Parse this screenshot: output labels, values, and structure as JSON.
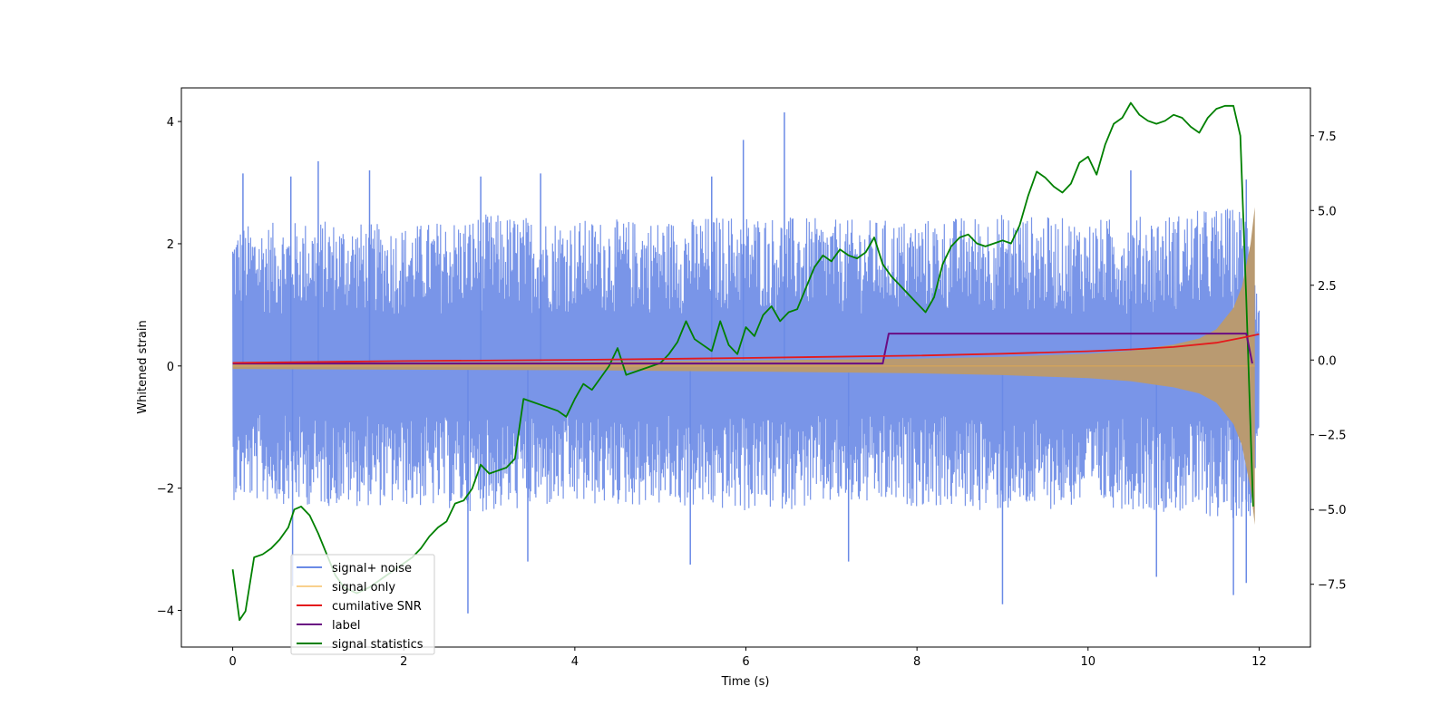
{
  "chart_data": {
    "type": "line",
    "xlabel": "Time (s)",
    "ylabel": "Whitened strain",
    "ylabel_right": "",
    "xlim": [
      -0.6,
      12.6
    ],
    "ylim": [
      -4.6,
      4.55
    ],
    "ylim_right": [
      -9.6,
      9.1
    ],
    "x_ticks": [
      0,
      2,
      4,
      6,
      8,
      10,
      12
    ],
    "x_tick_labels": [
      "0",
      "2",
      "4",
      "6",
      "8",
      "10",
      "12"
    ],
    "y_ticks": [
      -4,
      -2,
      0,
      2,
      4
    ],
    "y_tick_labels": [
      "−4",
      "−2",
      "0",
      "2",
      "4"
    ],
    "y_right_ticks": [
      -7.5,
      -5.0,
      -2.5,
      0.0,
      2.5,
      5.0,
      7.5
    ],
    "y_right_tick_labels": [
      "−7.5",
      "−5.0",
      "−2.5",
      "0.0",
      "2.5",
      "5.0",
      "7.5"
    ],
    "grid": false,
    "legend_position": "lower-left",
    "colors": {
      "signal_noise": "#6a8ae6",
      "signal_only": "#f5b041",
      "snr": "#e41a1c",
      "label": "#6a0d83",
      "stats": "#008000"
    },
    "series": [
      {
        "name": "signal+ noise",
        "axis": "left",
        "style": "dense noise band",
        "envelope_x": [
          0,
          1,
          2,
          3,
          4,
          5,
          6,
          7,
          8,
          9,
          10,
          11,
          11.5,
          11.9,
          12
        ],
        "envelope_upper": [
          2.3,
          2.4,
          2.3,
          2.5,
          2.4,
          2.4,
          2.5,
          2.4,
          2.4,
          2.5,
          2.4,
          2.5,
          2.6,
          2.6,
          1.0
        ],
        "envelope_lower": [
          -2.2,
          -2.3,
          -2.3,
          -2.4,
          -2.3,
          -2.3,
          -2.4,
          -2.3,
          -2.3,
          -2.4,
          -2.3,
          -2.4,
          -2.5,
          -2.5,
          -1.0
        ],
        "spikes": [
          {
            "x": 0.12,
            "y": 3.15
          },
          {
            "x": 0.68,
            "y": 3.1
          },
          {
            "x": 1.0,
            "y": 3.35
          },
          {
            "x": 1.6,
            "y": 3.2
          },
          {
            "x": 2.9,
            "y": 3.1
          },
          {
            "x": 3.6,
            "y": 3.15
          },
          {
            "x": 5.6,
            "y": 3.1
          },
          {
            "x": 5.97,
            "y": 3.7
          },
          {
            "x": 6.45,
            "y": 4.15
          },
          {
            "x": 10.5,
            "y": 3.2
          },
          {
            "x": 11.85,
            "y": 3.05
          },
          {
            "x": 2.75,
            "y": -4.05
          },
          {
            "x": 3.45,
            "y": -3.2
          },
          {
            "x": 5.35,
            "y": -3.25
          },
          {
            "x": 7.2,
            "y": -3.2
          },
          {
            "x": 9.0,
            "y": -3.9
          },
          {
            "x": 10.8,
            "y": -3.45
          },
          {
            "x": 11.7,
            "y": -3.75
          },
          {
            "x": 11.85,
            "y": -3.55
          },
          {
            "x": 0.7,
            "y": -3.6
          }
        ]
      },
      {
        "name": "signal only",
        "axis": "left",
        "style": "chirp envelope",
        "x": [
          0,
          2,
          4,
          6,
          8,
          9,
          10,
          10.5,
          11,
          11.3,
          11.5,
          11.7,
          11.8,
          11.9,
          11.95
        ],
        "amplitude": [
          0.05,
          0.06,
          0.07,
          0.09,
          0.12,
          0.15,
          0.2,
          0.25,
          0.35,
          0.45,
          0.6,
          0.95,
          1.3,
          2.0,
          2.6
        ]
      },
      {
        "name": "cumilative SNR",
        "axis": "left",
        "x": [
          0,
          2,
          4,
          6,
          8,
          9,
          10,
          10.5,
          11,
          11.5,
          11.8,
          12
        ],
        "values": [
          0.05,
          0.08,
          0.1,
          0.13,
          0.17,
          0.2,
          0.24,
          0.27,
          0.31,
          0.38,
          0.46,
          0.52
        ]
      },
      {
        "name": "label",
        "axis": "left",
        "x": [
          0,
          7.6,
          7.67,
          11.85,
          11.92
        ],
        "values": [
          0.04,
          0.04,
          0.53,
          0.53,
          0.04
        ]
      },
      {
        "name": "signal statistics",
        "axis": "right",
        "x": [
          0,
          0.08,
          0.15,
          0.25,
          0.35,
          0.45,
          0.55,
          0.65,
          0.72,
          0.8,
          0.9,
          1.0,
          1.1,
          1.2,
          1.3,
          1.45,
          1.6,
          1.75,
          1.9,
          2.0,
          2.1,
          2.2,
          2.3,
          2.4,
          2.5,
          2.6,
          2.7,
          2.8,
          2.9,
          3.0,
          3.1,
          3.2,
          3.3,
          3.4,
          3.5,
          3.6,
          3.7,
          3.8,
          3.9,
          4.0,
          4.1,
          4.2,
          4.3,
          4.4,
          4.5,
          4.6,
          4.7,
          4.8,
          4.9,
          5.0,
          5.1,
          5.2,
          5.3,
          5.4,
          5.5,
          5.6,
          5.7,
          5.8,
          5.9,
          6.0,
          6.1,
          6.2,
          6.3,
          6.4,
          6.5,
          6.6,
          6.7,
          6.8,
          6.9,
          7.0,
          7.1,
          7.2,
          7.3,
          7.4,
          7.5,
          7.6,
          7.7,
          7.8,
          7.9,
          8.0,
          8.1,
          8.2,
          8.3,
          8.4,
          8.5,
          8.6,
          8.7,
          8.8,
          8.9,
          9.0,
          9.1,
          9.2,
          9.3,
          9.4,
          9.5,
          9.6,
          9.7,
          9.8,
          9.9,
          10.0,
          10.1,
          10.2,
          10.3,
          10.4,
          10.5,
          10.6,
          10.7,
          10.8,
          10.9,
          11.0,
          11.1,
          11.2,
          11.3,
          11.4,
          11.5,
          11.6,
          11.7,
          11.78,
          11.85,
          11.93
        ],
        "values": [
          -7.0,
          -8.7,
          -8.4,
          -6.6,
          -6.5,
          -6.3,
          -6.0,
          -5.6,
          -5.0,
          -4.9,
          -5.2,
          -5.8,
          -6.5,
          -7.2,
          -7.6,
          -7.8,
          -7.6,
          -7.3,
          -7.0,
          -6.8,
          -6.6,
          -6.3,
          -5.9,
          -5.6,
          -5.4,
          -4.8,
          -4.7,
          -4.3,
          -3.5,
          -3.8,
          -3.7,
          -3.6,
          -3.3,
          -1.3,
          -1.4,
          -1.5,
          -1.6,
          -1.7,
          -1.9,
          -1.3,
          -0.8,
          -1.0,
          -0.6,
          -0.2,
          0.4,
          -0.5,
          -0.4,
          -0.3,
          -0.2,
          -0.1,
          0.2,
          0.6,
          1.3,
          0.7,
          0.5,
          0.3,
          1.3,
          0.5,
          0.2,
          1.1,
          0.8,
          1.5,
          1.8,
          1.3,
          1.6,
          1.7,
          2.4,
          3.1,
          3.5,
          3.3,
          3.7,
          3.5,
          3.4,
          3.6,
          4.1,
          3.2,
          2.8,
          2.5,
          2.2,
          1.9,
          1.6,
          2.1,
          3.2,
          3.8,
          4.1,
          4.2,
          3.9,
          3.8,
          3.9,
          4.0,
          3.9,
          4.5,
          5.5,
          6.3,
          6.1,
          5.8,
          5.6,
          5.9,
          6.6,
          6.8,
          6.2,
          7.2,
          7.9,
          8.1,
          8.6,
          8.2,
          8.0,
          7.9,
          8.0,
          8.2,
          8.1,
          7.8,
          7.6,
          8.1,
          8.4,
          8.5,
          8.5,
          7.5,
          2.0,
          -4.9
        ]
      }
    ]
  }
}
